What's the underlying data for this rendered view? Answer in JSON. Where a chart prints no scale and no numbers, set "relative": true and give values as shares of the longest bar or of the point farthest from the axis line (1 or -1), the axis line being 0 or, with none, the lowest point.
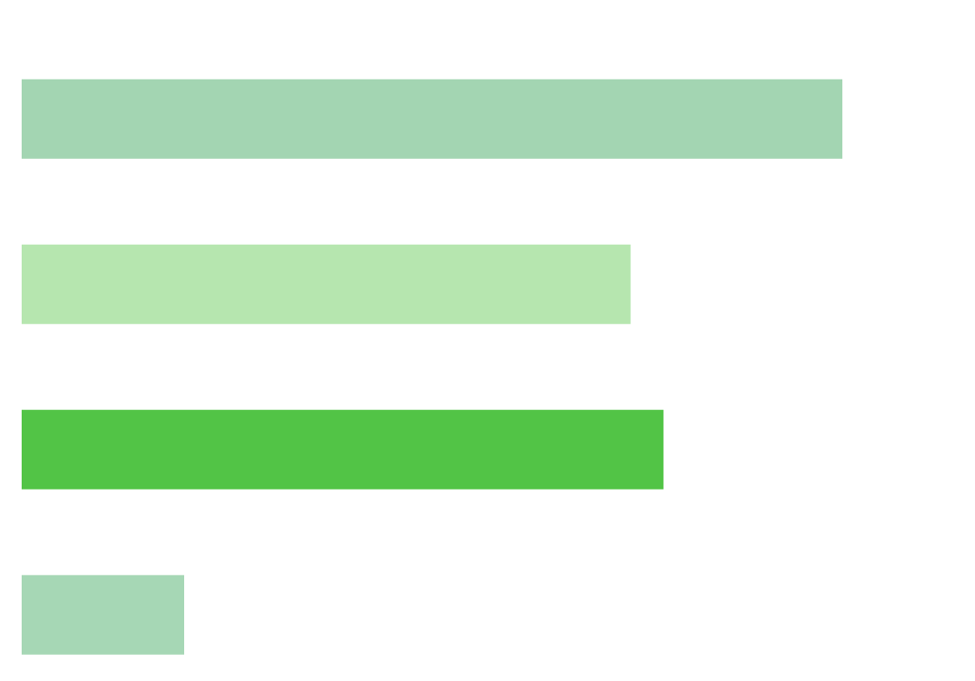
{
  "chart_data": {
    "type": "bar",
    "orientation": "horizontal",
    "relative": true,
    "categories": [
      null,
      null,
      null,
      null
    ],
    "values": [
      1,
      0.742,
      0.782,
      0.198
    ],
    "colors": [
      "#a3d5b2",
      "#b6e6af",
      "#52c446",
      "#a6d7b5"
    ],
    "grid": false,
    "legend": false
  }
}
